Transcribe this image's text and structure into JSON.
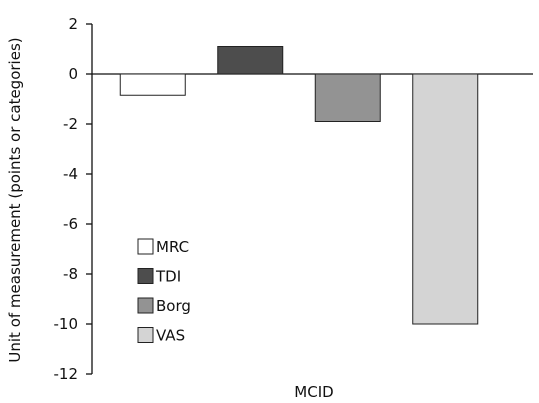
{
  "chart_data": {
    "type": "bar",
    "categories": [
      "MCID"
    ],
    "series": [
      {
        "name": "MRC",
        "values": [
          -0.85
        ],
        "color": "#ffffff"
      },
      {
        "name": "TDI",
        "values": [
          1.1
        ],
        "color": "#4d4d4d"
      },
      {
        "name": "Borg",
        "values": [
          -1.9
        ],
        "color": "#939393"
      },
      {
        "name": "VAS",
        "values": [
          -10.0
        ],
        "color": "#d4d4d4"
      }
    ],
    "xlabel": "MCID",
    "ylabel": "Unit of measurement (points or categories)",
    "ylim": [
      -12,
      2
    ],
    "yticks": [
      "2",
      "0",
      "-2",
      "-4",
      "-6",
      "-8",
      "-10",
      "-12"
    ],
    "grid": false,
    "legend_position": "lower-left",
    "bar_edge_color": "#222222"
  }
}
